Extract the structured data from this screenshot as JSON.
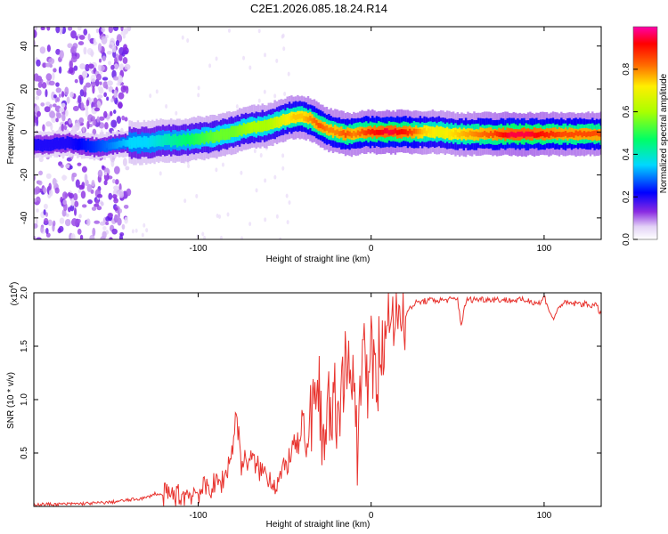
{
  "figure_title": "C2E1.2026.085.18.24.R14",
  "chart_data": [
    {
      "type": "heatmap",
      "title": "C2E1.2026.085.18.24.R14",
      "xlabel": "Height of straight line (km)",
      "ylabel": "Frequency (Hz)",
      "xlim": [
        -195,
        133
      ],
      "ylim": [
        -50,
        49
      ],
      "xticks": [
        -100,
        0,
        100
      ],
      "xtick_labels": [
        "-100",
        "0",
        "100"
      ],
      "yticks": [
        -40,
        -20,
        0,
        20,
        40
      ],
      "ytick_labels": [
        "-40",
        "-20",
        "0",
        "20",
        "40"
      ],
      "ridge": {
        "x": [
          -190,
          -175,
          -160,
          -150,
          -140,
          -130,
          -120,
          -110,
          -100,
          -90,
          -80,
          -70,
          -60,
          -50,
          -45,
          -40,
          -35,
          -30,
          -25,
          -20,
          -15,
          -10,
          -5,
          0,
          10,
          20,
          30,
          40,
          50,
          60,
          70,
          80,
          90,
          100,
          110,
          120,
          133
        ],
        "y": [
          -6,
          -5,
          -7,
          -6,
          -5,
          -5,
          -4,
          -4,
          -3,
          -2,
          0,
          2,
          3,
          6,
          7,
          7,
          6,
          3,
          1,
          0,
          -1,
          -1,
          0,
          0,
          0,
          0,
          0,
          0,
          -1,
          -1,
          -1,
          -1,
          -1,
          -1,
          -1,
          -1,
          -1
        ],
        "amplitude": [
          0.2,
          0.2,
          0.25,
          0.3,
          0.35,
          0.35,
          0.4,
          0.45,
          0.5,
          0.55,
          0.55,
          0.6,
          0.6,
          0.7,
          0.75,
          0.75,
          0.8,
          0.85,
          0.8,
          0.8,
          0.85,
          0.8,
          0.85,
          0.9,
          0.95,
          0.9,
          0.75,
          0.7,
          0.75,
          0.8,
          0.85,
          0.95,
          0.95,
          0.9,
          0.85,
          0.85,
          0.85
        ],
        "noise_region": [
          -195,
          -140
        ]
      },
      "colorbar": {
        "label": "Normalized spectral amplitude",
        "range": [
          0,
          1
        ],
        "ticks": [
          0.0,
          0.2,
          0.4,
          0.6,
          0.8
        ],
        "tick_labels": [
          "0.0",
          "0.2",
          "0.4",
          "0.6",
          "0.8"
        ]
      }
    },
    {
      "type": "line",
      "xlabel": "Height of straight line (km)",
      "ylabel": "SNR (10 * v/v)",
      "y_exponent_label": "(x10",
      "y_exponent_power": "4",
      "y_exponent_close": ")",
      "xlim": [
        -195,
        133
      ],
      "ylim": [
        0,
        2.0
      ],
      "xticks": [
        -100,
        0,
        100
      ],
      "xtick_labels": [
        "-100",
        "0",
        "100"
      ],
      "yticks": [
        0.5,
        1.0,
        1.5,
        2.0
      ],
      "ytick_labels": [
        "0.5",
        "1.0",
        "1.5",
        "2.0"
      ],
      "series": [
        {
          "name": "SNR",
          "color": "#e8332e",
          "x": [
            -195,
            -180,
            -160,
            -150,
            -140,
            -130,
            -125,
            -120,
            -110,
            -100,
            -95,
            -90,
            -85,
            -80,
            -78,
            -75,
            -70,
            -65,
            -60,
            -55,
            -50,
            -45,
            -40,
            -35,
            -30,
            -28,
            -25,
            -22,
            -20,
            -18,
            -15,
            -12,
            -10,
            -8,
            -5,
            -3,
            0,
            2,
            5,
            8,
            10,
            12,
            15,
            18,
            20,
            25,
            30,
            35,
            40,
            50,
            52,
            55,
            60,
            70,
            80,
            90,
            98,
            100,
            105,
            110,
            120,
            130,
            133
          ],
          "y": [
            0.02,
            0.02,
            0.03,
            0.04,
            0.06,
            0.08,
            0.12,
            0.1,
            0.1,
            0.14,
            0.17,
            0.2,
            0.25,
            0.55,
            0.9,
            0.4,
            0.45,
            0.35,
            0.3,
            0.2,
            0.35,
            0.55,
            0.6,
            0.8,
            1.4,
            0.35,
            1.2,
            0.9,
            1.1,
            0.9,
            1.3,
            1.2,
            1.4,
            0.45,
            1.6,
            1.2,
            1.45,
            1.15,
            1.6,
            1.5,
            1.9,
            1.7,
            1.75,
            1.85,
            1.8,
            1.9,
            1.92,
            1.93,
            1.93,
            1.94,
            1.7,
            1.93,
            1.94,
            1.94,
            1.93,
            1.93,
            1.9,
            1.97,
            1.75,
            1.9,
            1.9,
            1.88,
            1.8
          ]
        }
      ]
    }
  ]
}
